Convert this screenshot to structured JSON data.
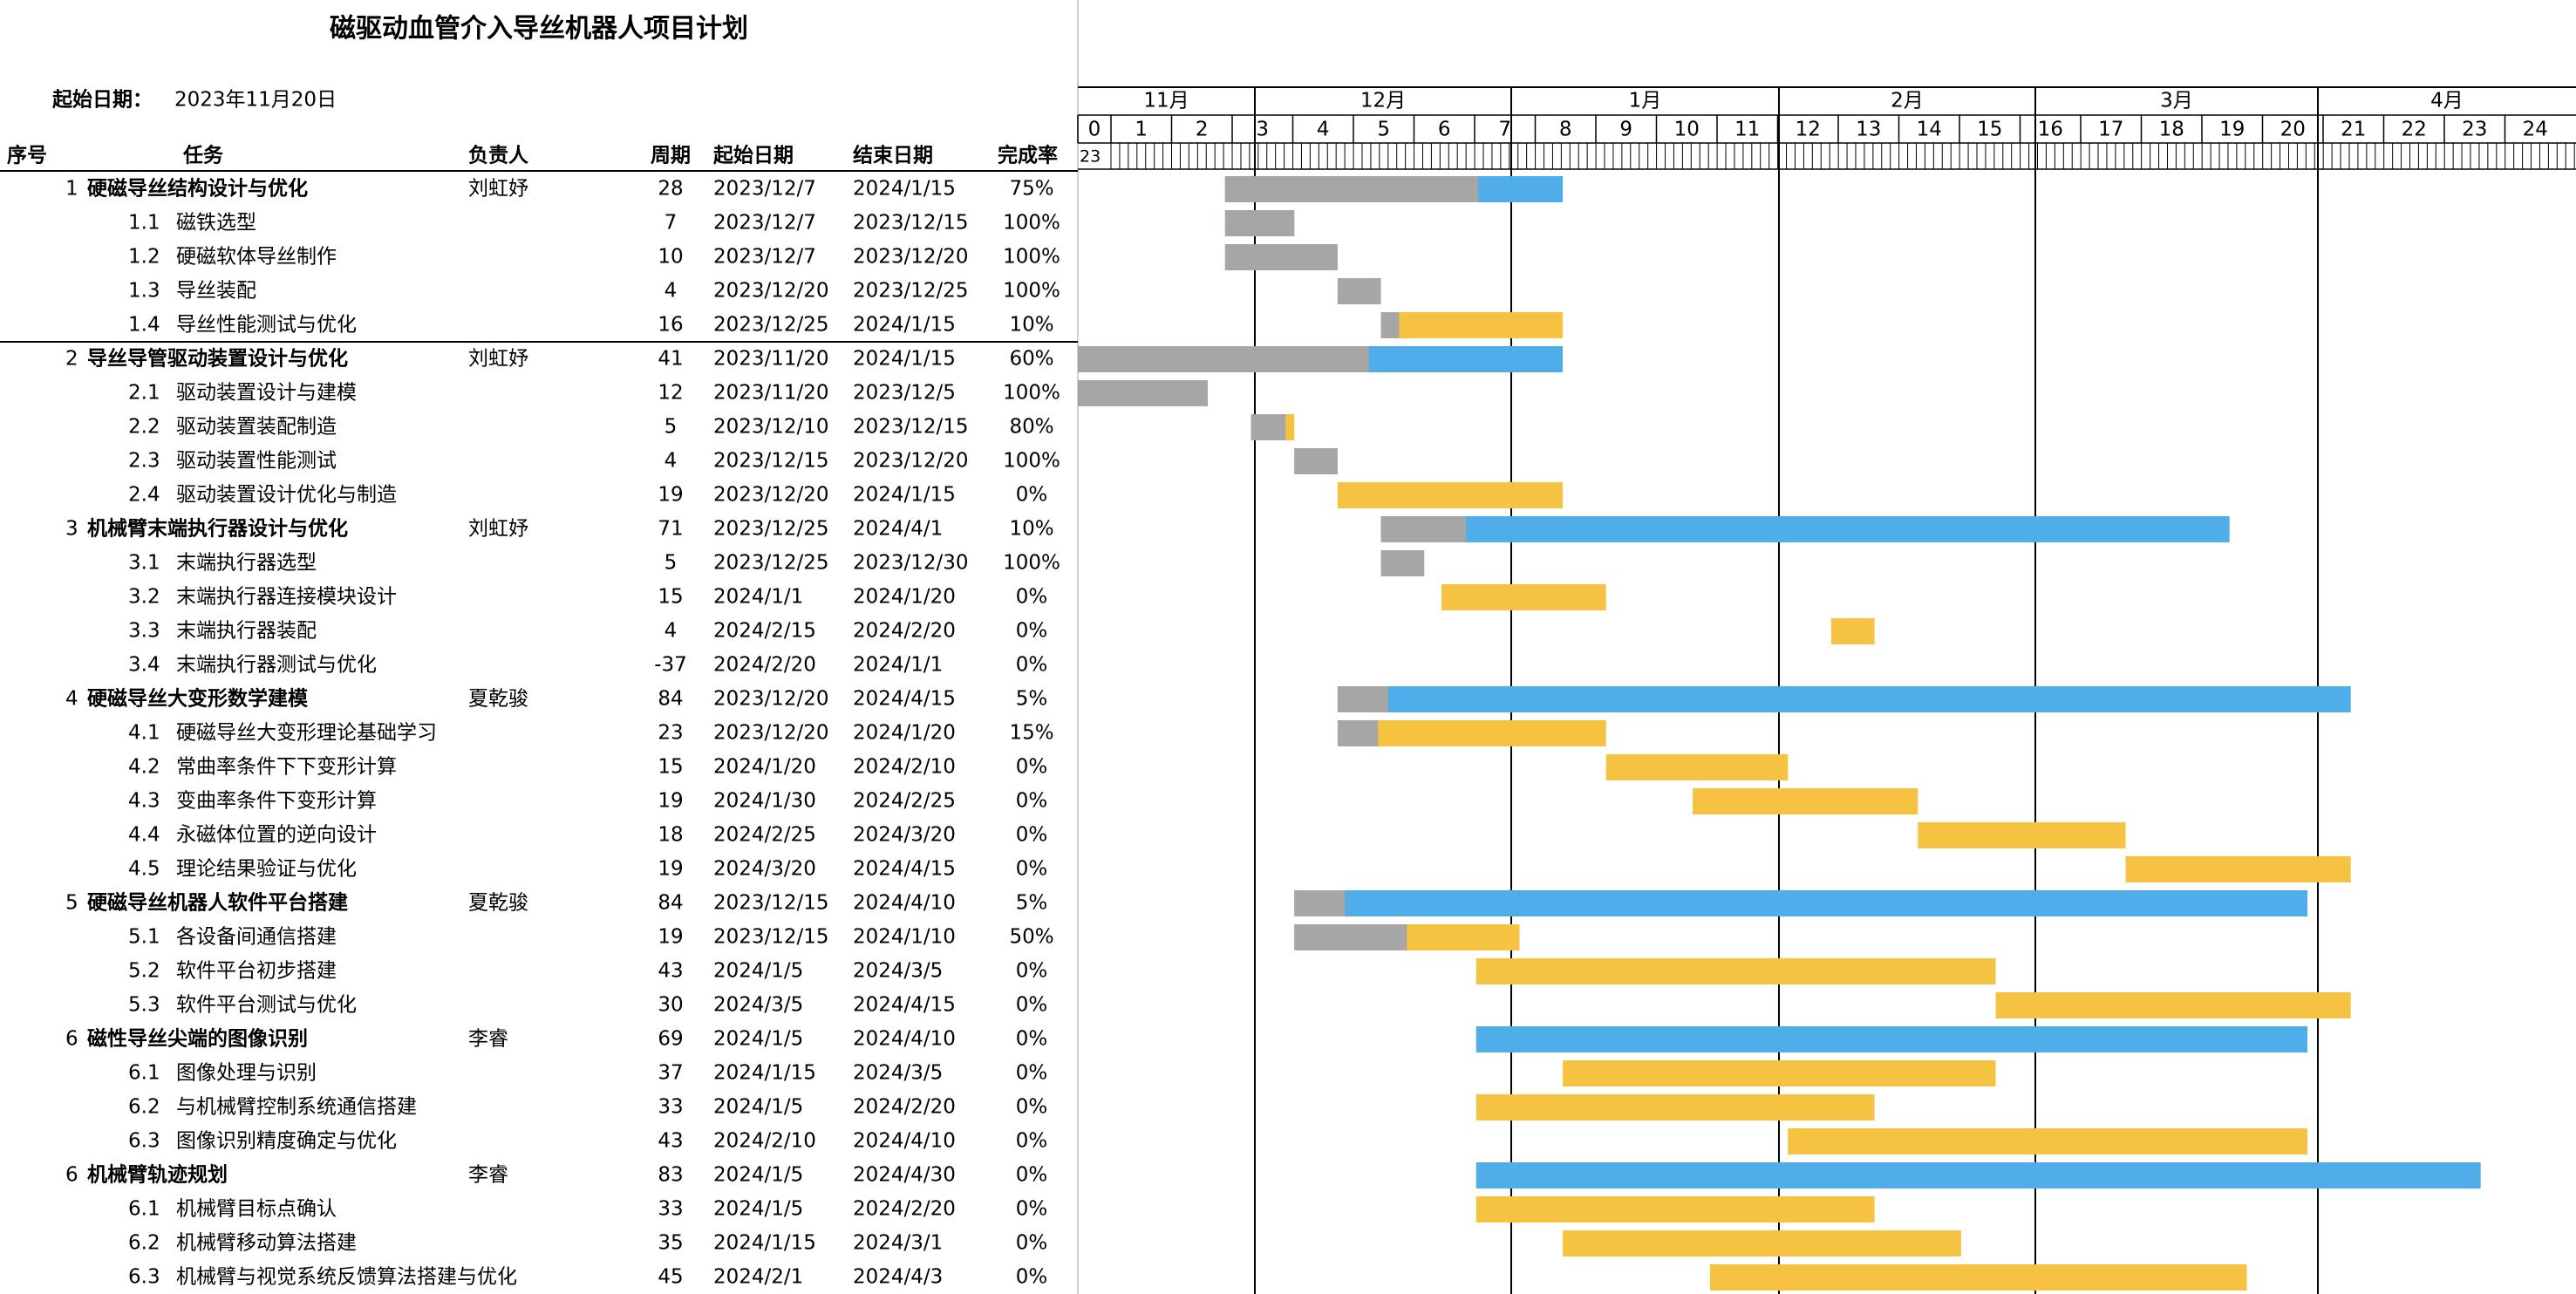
{
  "header": {
    "title": "磁驱动血管介入导丝机器人项目计划",
    "start_label": "起始日期：",
    "start_date": "2023年11月20日"
  },
  "columns": [
    "序号",
    "任务",
    "负责人",
    "周期",
    "起始日期",
    "结束日期",
    "完成率"
  ],
  "timeline": {
    "months": [
      "11月",
      "12月",
      "1月",
      "2月",
      "3月",
      "4月"
    ],
    "weeks": [
      0,
      1,
      2,
      3,
      4,
      5,
      6,
      7,
      8,
      9,
      10,
      11,
      12,
      13,
      14,
      15,
      16,
      17,
      18,
      19,
      20,
      21,
      22,
      23,
      24
    ],
    "first_day": "23"
  },
  "colors": {
    "done": "#a6a6a6"
  },
  "rows": [
    {
      "id": "1",
      "task": "硬磁导丝结构设计与优化",
      "owner": "刘虹妤",
      "duration": 28,
      "start": "2023/12/7",
      "end": "2024/1/15",
      "progress": 75,
      "progress_label": "75%",
      "color": "#4faeea"
    },
    {
      "id": "1.1",
      "task": "磁铁选型",
      "duration": 7,
      "start": "2023/12/7",
      "end": "2023/12/15",
      "progress": 100,
      "progress_label": "100%",
      "color": "#f5c242"
    },
    {
      "id": "1.2",
      "task": "硬磁软体导丝制作",
      "duration": 10,
      "start": "2023/12/7",
      "end": "2023/12/20",
      "progress": 100,
      "progress_label": "100%",
      "color": "#f5c242"
    },
    {
      "id": "1.3",
      "task": "导丝装配",
      "duration": 4,
      "start": "2023/12/20",
      "end": "2023/12/25",
      "progress": 100,
      "progress_label": "100%",
      "color": "#f5c242"
    },
    {
      "id": "1.4",
      "task": "导丝性能测试与优化",
      "duration": 16,
      "start": "2023/12/25",
      "end": "2024/1/15",
      "progress": 10,
      "progress_label": "10%",
      "color": "#f5c242"
    },
    {
      "id": "2",
      "task": "导丝导管驱动装置设计与优化",
      "owner": "刘虹妤",
      "duration": 41,
      "start": "2023/11/20",
      "end": "2024/1/15",
      "progress": 60,
      "progress_label": "60%",
      "color": "#4faeea"
    },
    {
      "id": "2.1",
      "task": "驱动装置设计与建模",
      "duration": 12,
      "start": "2023/11/20",
      "end": "2023/12/5",
      "progress": 100,
      "progress_label": "100%",
      "color": "#f5c242"
    },
    {
      "id": "2.2",
      "task": "驱动装置装配制造",
      "duration": 5,
      "start": "2023/12/10",
      "end": "2023/12/15",
      "progress": 80,
      "progress_label": "80%",
      "color": "#f5c242"
    },
    {
      "id": "2.3",
      "task": "驱动装置性能测试",
      "duration": 4,
      "start": "2023/12/15",
      "end": "2023/12/20",
      "progress": 100,
      "progress_label": "100%",
      "color": "#f5c242"
    },
    {
      "id": "2.4",
      "task": "驱动装置设计优化与制造",
      "duration": 19,
      "start": "2023/12/20",
      "end": "2024/1/15",
      "progress": 0,
      "progress_label": "0%",
      "color": "#f5c242"
    },
    {
      "id": "3",
      "task": "机械臂末端执行器设计与优化",
      "owner": "刘虹妤",
      "duration": 71,
      "start": "2023/12/25",
      "end": "2024/4/1",
      "progress": 10,
      "progress_label": "10%",
      "color": "#4faeea"
    },
    {
      "id": "3.1",
      "task": "末端执行器选型",
      "duration": 5,
      "start": "2023/12/25",
      "end": "2023/12/30",
      "progress": 100,
      "progress_label": "100%",
      "color": "#f5c242"
    },
    {
      "id": "3.2",
      "task": "末端执行器连接模块设计",
      "duration": 15,
      "start": "2024/1/1",
      "end": "2024/1/20",
      "progress": 0,
      "progress_label": "0%",
      "color": "#f5c242"
    },
    {
      "id": "3.3",
      "task": "末端执行器装配",
      "duration": 4,
      "start": "2024/2/15",
      "end": "2024/2/20",
      "progress": 0,
      "progress_label": "0%",
      "color": "#f5c242"
    },
    {
      "id": "3.4",
      "task": "末端执行器测试与优化",
      "duration": -37,
      "start": "2024/2/20",
      "end": "2024/1/1",
      "progress": 0,
      "progress_label": "0%",
      "color": "#f5c242"
    },
    {
      "id": "4",
      "task": "硬磁导丝大变形数学建模",
      "owner": "夏乾骏",
      "duration": 84,
      "start": "2023/12/20",
      "end": "2024/4/15",
      "progress": 5,
      "progress_label": "5%",
      "color": "#4faeea"
    },
    {
      "id": "4.1",
      "task": "硬磁导丝大变形理论基础学习",
      "duration": 23,
      "start": "2023/12/20",
      "end": "2024/1/20",
      "progress": 15,
      "progress_label": "15%",
      "color": "#f5c242"
    },
    {
      "id": "4.2",
      "task": "常曲率条件下下变形计算",
      "duration": 15,
      "start": "2024/1/20",
      "end": "2024/2/10",
      "progress": 0,
      "progress_label": "0%",
      "color": "#f5c242"
    },
    {
      "id": "4.3",
      "task": "变曲率条件下变形计算",
      "duration": 19,
      "start": "2024/1/30",
      "end": "2024/2/25",
      "progress": 0,
      "progress_label": "0%",
      "color": "#f5c242"
    },
    {
      "id": "4.4",
      "task": "永磁体位置的逆向设计",
      "duration": 18,
      "start": "2024/2/25",
      "end": "2024/3/20",
      "progress": 0,
      "progress_label": "0%",
      "color": "#f5c242"
    },
    {
      "id": "4.5",
      "task": "理论结果验证与优化",
      "duration": 19,
      "start": "2024/3/20",
      "end": "2024/4/15",
      "progress": 0,
      "progress_label": "0%",
      "color": "#f5c242"
    },
    {
      "id": "5",
      "task": "硬磁导丝机器人软件平台搭建",
      "owner": "夏乾骏",
      "duration": 84,
      "start": "2023/12/15",
      "end": "2024/4/10",
      "progress": 5,
      "progress_label": "5%",
      "color": "#4faeea"
    },
    {
      "id": "5.1",
      "task": "各设备间通信搭建",
      "duration": 19,
      "start": "2023/12/15",
      "end": "2024/1/10",
      "progress": 50,
      "progress_label": "50%",
      "color": "#f5c242"
    },
    {
      "id": "5.2",
      "task": "软件平台初步搭建",
      "duration": 43,
      "start": "2024/1/5",
      "end": "2024/3/5",
      "progress": 0,
      "progress_label": "0%",
      "color": "#f5c242"
    },
    {
      "id": "5.3",
      "task": "软件平台测试与优化",
      "duration": 30,
      "start": "2024/3/5",
      "end": "2024/4/15",
      "progress": 0,
      "progress_label": "0%",
      "color": "#f5c242"
    },
    {
      "id": "6",
      "task": "磁性导丝尖端的图像识别",
      "owner": "李睿",
      "duration": 69,
      "start": "2024/1/5",
      "end": "2024/4/10",
      "progress": 0,
      "progress_label": "0%",
      "color": "#4faeea"
    },
    {
      "id": "6.1",
      "task": "图像处理与识别",
      "duration": 37,
      "start": "2024/1/15",
      "end": "2024/3/5",
      "progress": 0,
      "progress_label": "0%",
      "color": "#f5c242"
    },
    {
      "id": "6.2",
      "task": "与机械臂控制系统通信搭建",
      "duration": 33,
      "start": "2024/1/5",
      "end": "2024/2/20",
      "progress": 0,
      "progress_label": "0%",
      "color": "#f5c242"
    },
    {
      "id": "6.3",
      "task": "图像识别精度确定与优化",
      "duration": 43,
      "start": "2024/2/10",
      "end": "2024/4/10",
      "progress": 0,
      "progress_label": "0%",
      "color": "#f5c242"
    },
    {
      "id": "6",
      "task": "机械臂轨迹规划",
      "owner": "李睿",
      "duration": 83,
      "start": "2024/1/5",
      "end": "2024/4/30",
      "progress": 0,
      "progress_label": "0%",
      "color": "#4faeea"
    },
    {
      "id": "6.1",
      "task": "机械臂目标点确认",
      "duration": 33,
      "start": "2024/1/5",
      "end": "2024/2/20",
      "progress": 0,
      "progress_label": "0%",
      "color": "#f5c242"
    },
    {
      "id": "6.2",
      "task": "机械臂移动算法搭建",
      "duration": 35,
      "start": "2024/1/15",
      "end": "2024/3/1",
      "progress": 0,
      "progress_label": "0%",
      "color": "#f5c242"
    },
    {
      "id": "6.3",
      "task": "机械臂与视觉系统反馈算法搭建与优化",
      "duration": 45,
      "start": "2024/2/1",
      "end": "2024/4/3",
      "progress": 0,
      "progress_label": "0%",
      "color": "#f5c242"
    }
  ]
}
